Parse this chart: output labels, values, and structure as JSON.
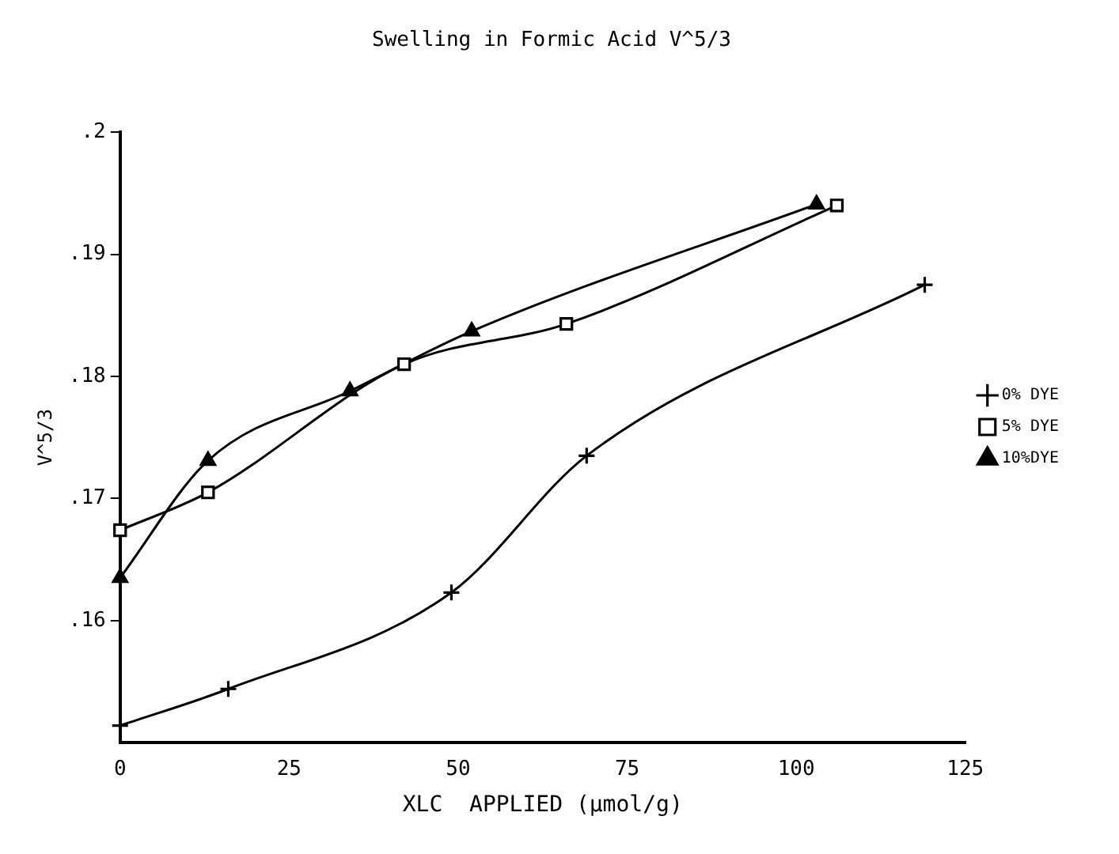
{
  "chart_data": {
    "type": "line",
    "title": "Swelling in Formic Acid V^5/3",
    "xlabel": "XLC  APPLIED (μmol/g)",
    "ylabel": "V^5/3",
    "xlim": [
      0,
      125
    ],
    "xticks": [
      0,
      25,
      50,
      75,
      100,
      125
    ],
    "ylim": [
      0.15,
      0.2
    ],
    "yticks": [
      {
        "value": 0.16,
        "label": ".16"
      },
      {
        "value": 0.17,
        "label": ".17"
      },
      {
        "value": 0.18,
        "label": ".18"
      },
      {
        "value": 0.19,
        "label": ".19"
      },
      {
        "value": 0.2,
        "label": ".2"
      }
    ],
    "legend": "right",
    "grid": false,
    "series": [
      {
        "name": "0% DYE",
        "color": "#000000",
        "marker": "cross",
        "x": [
          0,
          16,
          49,
          69,
          119
        ],
        "values": [
          0.1514,
          0.1544,
          0.1623,
          0.1735,
          0.1875
        ]
      },
      {
        "name": "5% DYE",
        "color": "#000000",
        "marker": "square",
        "x": [
          0,
          13,
          42,
          66,
          106
        ],
        "values": [
          0.1674,
          0.1705,
          0.181,
          0.1843,
          0.194
        ]
      },
      {
        "name": "10%DYE",
        "color": "#000000",
        "marker": "triangle",
        "x": [
          0,
          13,
          34,
          52,
          103
        ],
        "values": [
          0.1635,
          0.1731,
          0.1788,
          0.1837,
          0.1941
        ]
      }
    ]
  }
}
